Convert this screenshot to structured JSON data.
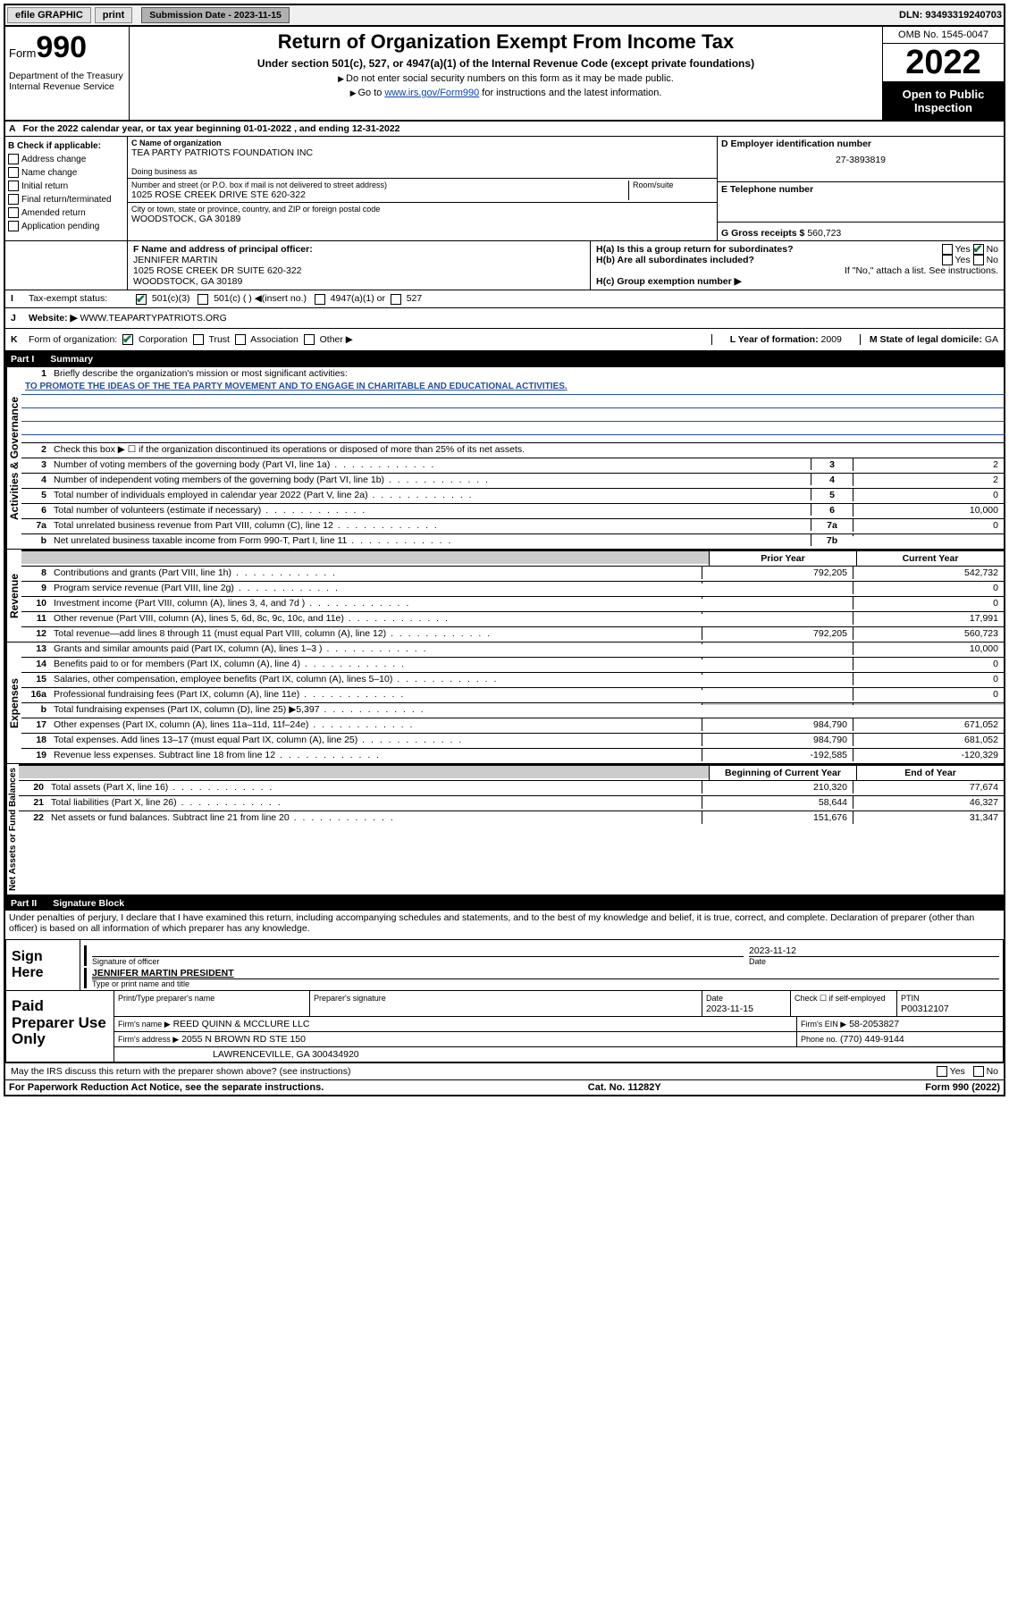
{
  "topbar": {
    "efile": "efile GRAPHIC",
    "print": "print",
    "sub_label": "Submission Date - 2023-11-15",
    "dln_label": "DLN:",
    "dln": "93493319240703"
  },
  "header": {
    "form_prefix": "Form",
    "form_number": "990",
    "title": "Return of Organization Exempt From Income Tax",
    "subtitle": "Under section 501(c), 527, or 4947(a)(1) of the Internal Revenue Code (except private foundations)",
    "note1": "Do not enter social security numbers on this form as it may be made public.",
    "note2_prefix": "Go to ",
    "note2_link": "www.irs.gov/Form990",
    "note2_suffix": " for instructions and the latest information.",
    "omb": "OMB No. 1545-0047",
    "tax_year": "2022",
    "open_public": "Open to Public Inspection",
    "dept1": "Department of the Treasury",
    "dept2": "Internal Revenue Service"
  },
  "rowA": {
    "label": "A",
    "text": "For the 2022 calendar year, or tax year beginning 01-01-2022     , and ending 12-31-2022"
  },
  "colB": {
    "header": "B Check if applicable:",
    "items": [
      "Address change",
      "Name change",
      "Initial return",
      "Final return/terminated",
      "Amended return",
      "Application pending"
    ]
  },
  "orgC": {
    "label": "C Name of organization",
    "name": "TEA PARTY PATRIOTS FOUNDATION INC",
    "dba_label": "Doing business as",
    "dba": "",
    "addr_label": "Number and street (or P.O. box if mail is not delivered to street address)",
    "room_label": "Room/suite",
    "addr": "1025 ROSE CREEK DRIVE STE 620-322",
    "city_label": "City or town, state or province, country, and ZIP or foreign postal code",
    "city": "WOODSTOCK, GA  30189"
  },
  "boxD": {
    "label": "D Employer identification number",
    "value": "27-3893819"
  },
  "boxE": {
    "label": "E Telephone number",
    "value": ""
  },
  "boxG": {
    "label": "G Gross receipts $",
    "value": "560,723"
  },
  "boxF": {
    "label": "F  Name and address of principal officer:",
    "name": "JENNIFER MARTIN",
    "addr1": "1025 ROSE CREEK DR SUITE 620-322",
    "addr2": "WOODSTOCK, GA  30189"
  },
  "boxH": {
    "ha_label": "H(a)  Is this a group return for subordinates?",
    "hb_label": "H(b)  Are all subordinates included?",
    "hb_note": "If \"No,\" attach a list. See instructions.",
    "hc_label": "H(c)  Group exemption number ▶",
    "yes": "Yes",
    "no": "No"
  },
  "rowI": {
    "label": "I",
    "text": "Tax-exempt status:",
    "opts": [
      "501(c)(3)",
      "501(c) (  ) ◀(insert no.)",
      "4947(a)(1) or",
      "527"
    ]
  },
  "rowJ": {
    "label": "J",
    "text": "Website: ▶",
    "value": "WWW.TEAPARTYPATRIOTS.ORG"
  },
  "rowK": {
    "label": "K",
    "text": "Form of organization:",
    "opts": [
      "Corporation",
      "Trust",
      "Association",
      "Other ▶"
    ]
  },
  "rowL": {
    "label": "L Year of formation:",
    "value": "2009"
  },
  "rowM": {
    "label": "M State of legal domicile:",
    "value": "GA"
  },
  "parts": {
    "p1": "Part I",
    "p1t": "Summary",
    "p2": "Part II",
    "p2t": "Signature Block"
  },
  "sections": {
    "gov": "Activities & Governance",
    "rev": "Revenue",
    "exp": "Expenses",
    "nab": "Net Assets or Fund Balances"
  },
  "summary": {
    "l1": "Briefly describe the organization's mission or most significant activities:",
    "l1v": "TO PROMOTE THE IDEAS OF THE TEA PARTY MOVEMENT AND TO ENGAGE IN CHARITABLE AND EDUCATIONAL ACTIVITIES.",
    "l2": "Check this box ▶ ☐  if the organization discontinued its operations or disposed of more than 25% of its net assets.",
    "lines_gov": [
      {
        "n": "3",
        "t": "Number of voting members of the governing body (Part VI, line 1a)",
        "box": "3",
        "v": "2"
      },
      {
        "n": "4",
        "t": "Number of independent voting members of the governing body (Part VI, line 1b)",
        "box": "4",
        "v": "2"
      },
      {
        "n": "5",
        "t": "Total number of individuals employed in calendar year 2022 (Part V, line 2a)",
        "box": "5",
        "v": "0"
      },
      {
        "n": "6",
        "t": "Total number of volunteers (estimate if necessary)",
        "box": "6",
        "v": "10,000"
      },
      {
        "n": "7a",
        "t": "Total unrelated business revenue from Part VIII, column (C), line 12",
        "box": "7a",
        "v": "0"
      },
      {
        "n": "b",
        "t": "Net unrelated business taxable income from Form 990-T, Part I, line 11",
        "box": "7b",
        "v": ""
      }
    ],
    "col_head_prior": "Prior Year",
    "col_head_curr": "Current Year",
    "lines_rev": [
      {
        "n": "8",
        "t": "Contributions and grants (Part VIII, line 1h)",
        "p": "792,205",
        "c": "542,732"
      },
      {
        "n": "9",
        "t": "Program service revenue (Part VIII, line 2g)",
        "p": "",
        "c": "0"
      },
      {
        "n": "10",
        "t": "Investment income (Part VIII, column (A), lines 3, 4, and 7d )",
        "p": "",
        "c": "0"
      },
      {
        "n": "11",
        "t": "Other revenue (Part VIII, column (A), lines 5, 6d, 8c, 9c, 10c, and 11e)",
        "p": "",
        "c": "17,991"
      },
      {
        "n": "12",
        "t": "Total revenue—add lines 8 through 11 (must equal Part VIII, column (A), line 12)",
        "p": "792,205",
        "c": "560,723"
      }
    ],
    "lines_exp": [
      {
        "n": "13",
        "t": "Grants and similar amounts paid (Part IX, column (A), lines 1–3 )",
        "p": "",
        "c": "10,000"
      },
      {
        "n": "14",
        "t": "Benefits paid to or for members (Part IX, column (A), line 4)",
        "p": "",
        "c": "0"
      },
      {
        "n": "15",
        "t": "Salaries, other compensation, employee benefits (Part IX, column (A), lines 5–10)",
        "p": "",
        "c": "0"
      },
      {
        "n": "16a",
        "t": "Professional fundraising fees (Part IX, column (A), line 11e)",
        "p": "",
        "c": "0"
      },
      {
        "n": "b",
        "t": "Total fundraising expenses (Part IX, column (D), line 25) ▶5,397",
        "p": "SHADE",
        "c": "SHADE"
      },
      {
        "n": "17",
        "t": "Other expenses (Part IX, column (A), lines 11a–11d, 11f–24e)",
        "p": "984,790",
        "c": "671,052"
      },
      {
        "n": "18",
        "t": "Total expenses. Add lines 13–17 (must equal Part IX, column (A), line 25)",
        "p": "984,790",
        "c": "681,052"
      },
      {
        "n": "19",
        "t": "Revenue less expenses. Subtract line 18 from line 12",
        "p": "-192,585",
        "c": "-120,329"
      }
    ],
    "col_head_boy": "Beginning of Current Year",
    "col_head_eoy": "End of Year",
    "lines_nab": [
      {
        "n": "20",
        "t": "Total assets (Part X, line 16)",
        "p": "210,320",
        "c": "77,674"
      },
      {
        "n": "21",
        "t": "Total liabilities (Part X, line 26)",
        "p": "58,644",
        "c": "46,327"
      },
      {
        "n": "22",
        "t": "Net assets or fund balances. Subtract line 21 from line 20",
        "p": "151,676",
        "c": "31,347"
      }
    ]
  },
  "sig": {
    "penalties": "Under penalties of perjury, I declare that I have examined this return, including accompanying schedules and statements, and to the best of my knowledge and belief, it is true, correct, and complete. Declaration of preparer (other than officer) is based on all information of which preparer has any knowledge.",
    "sign_here": "Sign Here",
    "sig_officer_label": "Signature of officer",
    "date_label": "Date",
    "sig_date": "2023-11-12",
    "name_title": "JENNIFER MARTIN  PRESIDENT",
    "name_title_label": "Type or print name and title"
  },
  "prep": {
    "title": "Paid Preparer Use Only",
    "h_name": "Print/Type preparer's name",
    "h_sig": "Preparer's signature",
    "h_date": "Date",
    "date": "2023-11-15",
    "h_check": "Check ☐ if self-employed",
    "h_ptin": "PTIN",
    "ptin": "P00312107",
    "firm_name_label": "Firm's name      ▶",
    "firm_name": "REED QUINN & MCCLURE LLC",
    "firm_ein_label": "Firm's EIN ▶",
    "firm_ein": "58-2053827",
    "firm_addr_label": "Firm's address ▶",
    "firm_addr1": "2055 N BROWN RD STE 150",
    "firm_addr2": "LAWRENCEVILLE, GA  300434920",
    "phone_label": "Phone no.",
    "phone": "(770) 449-9144",
    "discuss": "May the IRS discuss this return with the preparer shown above? (see instructions)",
    "yes": "Yes",
    "no": "No"
  },
  "footer": {
    "left": "For Paperwork Reduction Act Notice, see the separate instructions.",
    "mid": "Cat. No. 11282Y",
    "right": "Form 990 (2022)"
  }
}
